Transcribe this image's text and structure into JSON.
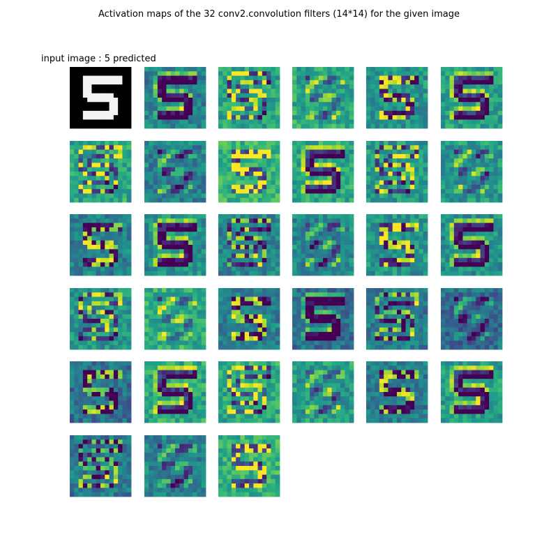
{
  "figure": {
    "title": "Activation maps of the 32 conv2.convolution filters (14*14) for the given image",
    "input_label": "input image : 5 predicted"
  },
  "chart_data": {
    "type": "heatmap",
    "layer": "conv2.convolution",
    "filter_count": 32,
    "map_size": [
      14,
      14
    ],
    "predicted_digit": 5,
    "colormap": "viridis",
    "input_colormap": "gray",
    "grid": {
      "rows": 6,
      "cols": 6,
      "cells_used": 33
    },
    "colors": {
      "viridis_low": "#440154",
      "viridis_mid": "#21918c",
      "viridis_high": "#fde725",
      "input_background": "#000000",
      "input_stroke": "#ffffff"
    }
  }
}
